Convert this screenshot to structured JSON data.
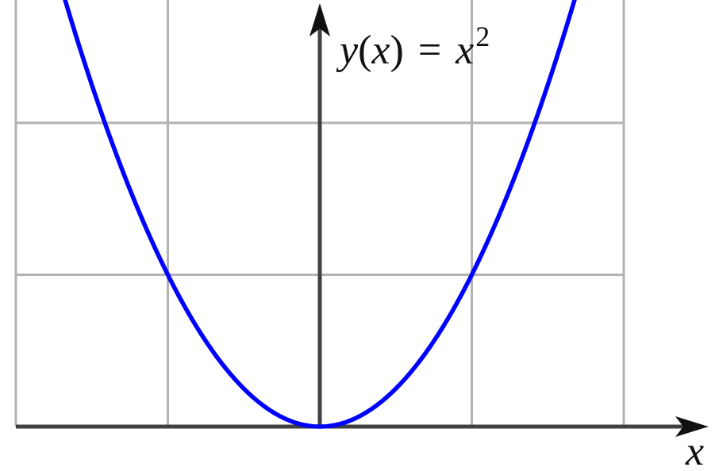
{
  "chart_data": {
    "type": "line",
    "title": "",
    "function_label": {
      "y": "y",
      "lparen": "(",
      "x": "x",
      "rparen": ")",
      "equals": "=",
      "base": "x",
      "exponent": "2"
    },
    "xlabel": "x",
    "ylabel": "",
    "xlim": [
      -2,
      2.55
    ],
    "ylim": [
      0,
      4.6
    ],
    "grid": true,
    "grid_x": [
      -2,
      -1,
      0,
      1,
      2
    ],
    "grid_y": [
      0,
      1,
      2
    ],
    "x_tick_labels": [],
    "y_tick_labels": [],
    "series": [
      {
        "color": "#0000ff",
        "x": [
          -2,
          -1.5,
          -1,
          -0.5,
          0,
          0.5,
          1,
          1.5,
          2
        ],
        "y": [
          4,
          2.25,
          1,
          0.25,
          0,
          0.25,
          1,
          2.25,
          4
        ],
        "continues_beyond_range": true
      }
    ],
    "legend": "none"
  }
}
